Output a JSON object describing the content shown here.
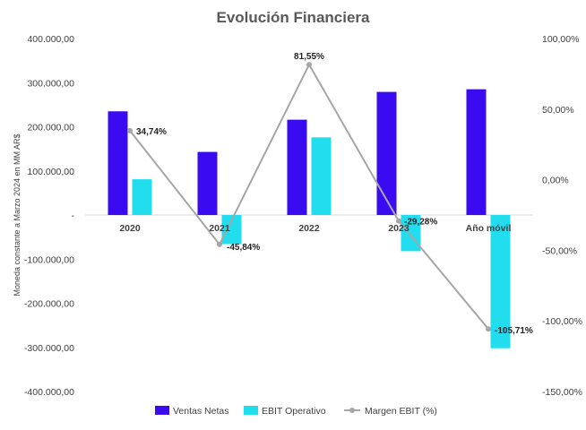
{
  "chart_data": {
    "type": "bar",
    "title": "Evolución Financiera",
    "ylabel": "Moneda constante a Marzo 2024 en MM AR$",
    "categories": [
      "2020",
      "2021",
      "2022",
      "2023",
      "Año móvil"
    ],
    "ylim": [
      -400000,
      400000
    ],
    "y_ticks": [
      400000,
      300000,
      200000,
      100000,
      0,
      -100000,
      -200000,
      -300000,
      -400000
    ],
    "y_tick_labels": [
      "400.000,00",
      "300.000,00",
      "200.000,00",
      "100.000,00",
      "-",
      "-100.000,00",
      "-200.000,00",
      "-300.000,00",
      "-400.000,00"
    ],
    "y2lim": [
      -150,
      100
    ],
    "y2_ticks": [
      100,
      50,
      0,
      -50,
      -100,
      -150
    ],
    "y2_tick_labels": [
      "100,00%",
      "50,00%",
      "0,00%",
      "-50,00%",
      "-100,00%",
      "-150,00%"
    ],
    "grid": false,
    "legend_position": "bottom",
    "series": [
      {
        "name": "Ventas Netas",
        "kind": "bar",
        "axis": "left",
        "color": "#3A0BF0",
        "values": [
          235000,
          143000,
          216000,
          279000,
          285000
        ]
      },
      {
        "name": "EBIT Operativo",
        "kind": "bar",
        "axis": "left",
        "color": "#22DDEE",
        "values": [
          81000,
          -66000,
          176000,
          -82000,
          -302000
        ]
      },
      {
        "name": "Margen EBIT (%)",
        "kind": "line",
        "axis": "right",
        "color": "#A6A6A6",
        "values": [
          34.74,
          -45.84,
          81.55,
          -29.28,
          -105.71
        ],
        "labels": [
          "34,74%",
          "-45,84%",
          "81,55%",
          "-29,28%",
          "-105,71%"
        ]
      }
    ]
  }
}
